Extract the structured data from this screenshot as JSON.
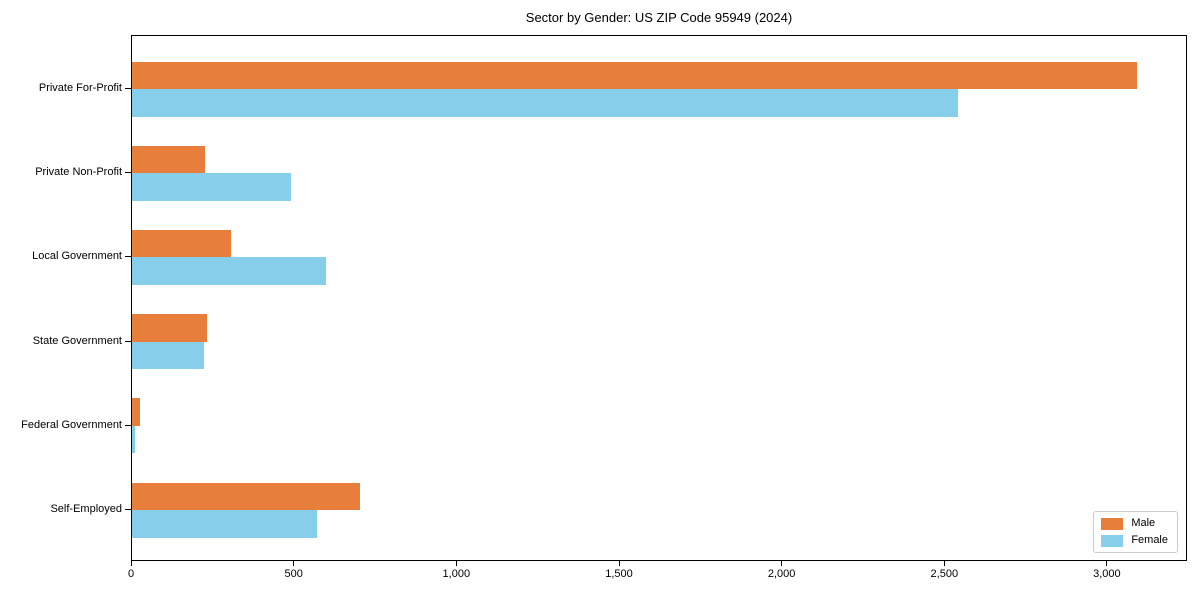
{
  "chart_data": {
    "type": "bar",
    "orientation": "horizontal",
    "title": "Sector by Gender: US ZIP Code 95949 (2024)",
    "categories": [
      "Private For-Profit",
      "Private Non-Profit",
      "Local Government",
      "State Government",
      "Federal Government",
      "Self-Employed"
    ],
    "series": [
      {
        "name": "Male",
        "color": "#e87e3c",
        "values": [
          3090,
          225,
          305,
          230,
          25,
          700
        ]
      },
      {
        "name": "Female",
        "color": "#87ceeb",
        "values": [
          2540,
          490,
          595,
          220,
          10,
          570
        ]
      }
    ],
    "xlim": [
      0,
      3240
    ],
    "x_ticks": [
      0,
      500,
      1000,
      1500,
      2000,
      2500,
      3000
    ],
    "x_tick_labels": [
      "0",
      "500",
      "1,000",
      "1,500",
      "2,000",
      "2,500",
      "3,000"
    ],
    "xlabel": "",
    "ylabel": "",
    "grid": false,
    "legend_position": "lower right"
  }
}
